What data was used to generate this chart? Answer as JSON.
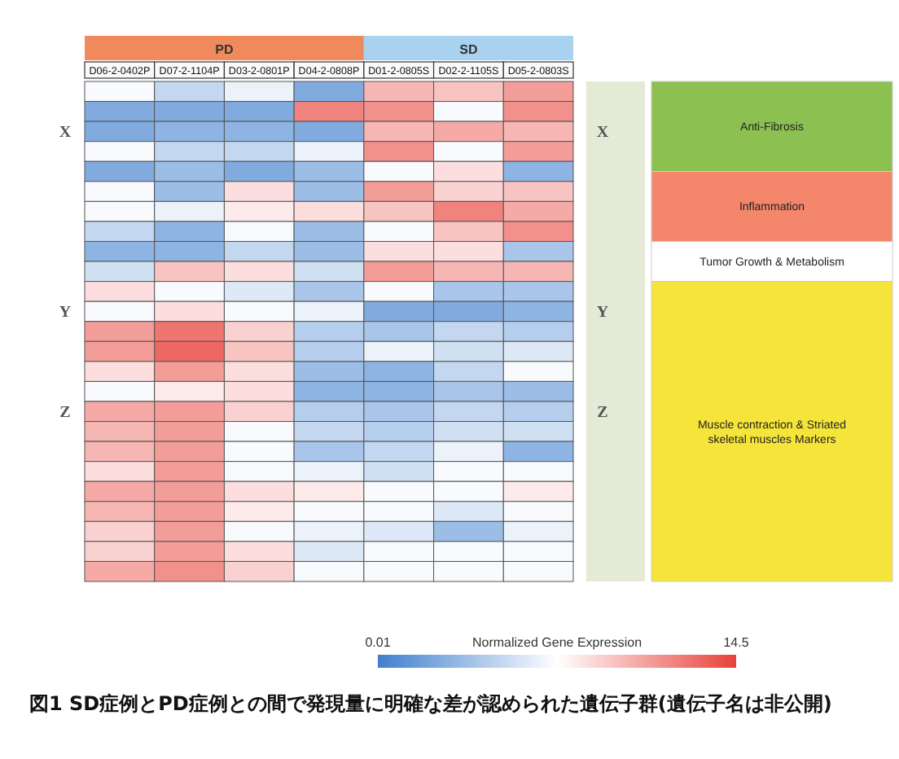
{
  "chart_data": {
    "type": "heatmap",
    "categories": [
      "D06-2-0402P",
      "D07-2-1104P",
      "D03-2-0801P",
      "D04-2-0808P",
      "D01-2-0805S",
      "D02-2-1105S",
      "D05-2-0803S"
    ],
    "y_categories": [
      null,
      null,
      "X",
      null,
      null,
      null,
      null,
      null,
      null,
      null,
      null,
      "Y",
      null,
      null,
      null,
      null,
      "Z",
      null,
      null,
      null,
      null,
      null,
      null,
      null,
      null
    ],
    "y2_categories": [
      null,
      null,
      "X",
      null,
      null,
      null,
      null,
      null,
      null,
      null,
      null,
      "Y",
      null,
      null,
      null,
      null,
      "Z",
      null,
      null,
      null,
      null,
      null,
      null,
      null,
      null
    ],
    "cells": [
      [
        7,
        5,
        6.5,
        2.5,
        10,
        9.5,
        11
      ],
      [
        2.5,
        2.5,
        2.5,
        12,
        11.5,
        7,
        11.5
      ],
      [
        2.5,
        3,
        3,
        2.5,
        10,
        10.5,
        10
      ],
      [
        7,
        5,
        5,
        6.5,
        11.5,
        7,
        11
      ],
      [
        2.5,
        3.5,
        2.5,
        3.5,
        7,
        8.5,
        3
      ],
      [
        7,
        3.5,
        8.5,
        3.5,
        11,
        9,
        9.5
      ],
      [
        7,
        6.5,
        8,
        8.5,
        9.5,
        12,
        10.5
      ],
      [
        5,
        3,
        7,
        3.5,
        7,
        9.5,
        11.5
      ],
      [
        3,
        3,
        5,
        3.5,
        8.5,
        8.5,
        4
      ],
      [
        5.5,
        9.5,
        8.5,
        5.5,
        11,
        10,
        10
      ],
      [
        8.5,
        7,
        6,
        4,
        7,
        4,
        4
      ],
      [
        7,
        8.5,
        7,
        6.5,
        2.5,
        2.5,
        3
      ],
      [
        11,
        12.5,
        9,
        4.5,
        4,
        5,
        4.5
      ],
      [
        11,
        13,
        9.5,
        4.5,
        6.5,
        5.5,
        6
      ],
      [
        8.5,
        11,
        8.5,
        3.5,
        3,
        5,
        7
      ],
      [
        7,
        8,
        8.5,
        3,
        3,
        4,
        3.5
      ],
      [
        10.5,
        11,
        9,
        4.5,
        4,
        5,
        4.5
      ],
      [
        10,
        11,
        7,
        5,
        4.5,
        5.5,
        5.5
      ],
      [
        10,
        11,
        7,
        4,
        5,
        6.5,
        3
      ],
      [
        8.5,
        11,
        7,
        6.5,
        5.5,
        7,
        7
      ],
      [
        10.5,
        11,
        8.5,
        8,
        7,
        7,
        8
      ],
      [
        10,
        11,
        8,
        7,
        7,
        6,
        7
      ],
      [
        9,
        11,
        7,
        6.5,
        6,
        3.5,
        6.5
      ],
      [
        9,
        11,
        8.5,
        6,
        7,
        7,
        7
      ],
      [
        10.5,
        11.5,
        9,
        7,
        7,
        7,
        7
      ]
    ],
    "clim": [
      0.01,
      14.5
    ],
    "cticks": [
      0.01,
      14.5
    ],
    "clabel": "Normalized Gene Expression",
    "annotations": [
      "PD",
      "SD",
      "Anti-Fibrosis",
      "Inflammation",
      "Tumor Growth & Metabolism",
      "Muscle contraction & Striated skeletal muscles Markers",
      "図1 SD症例とPD症例との間で発現量に明確な差が認められた遺伝子群(遺伝子名は非公開)"
    ]
  }
}
